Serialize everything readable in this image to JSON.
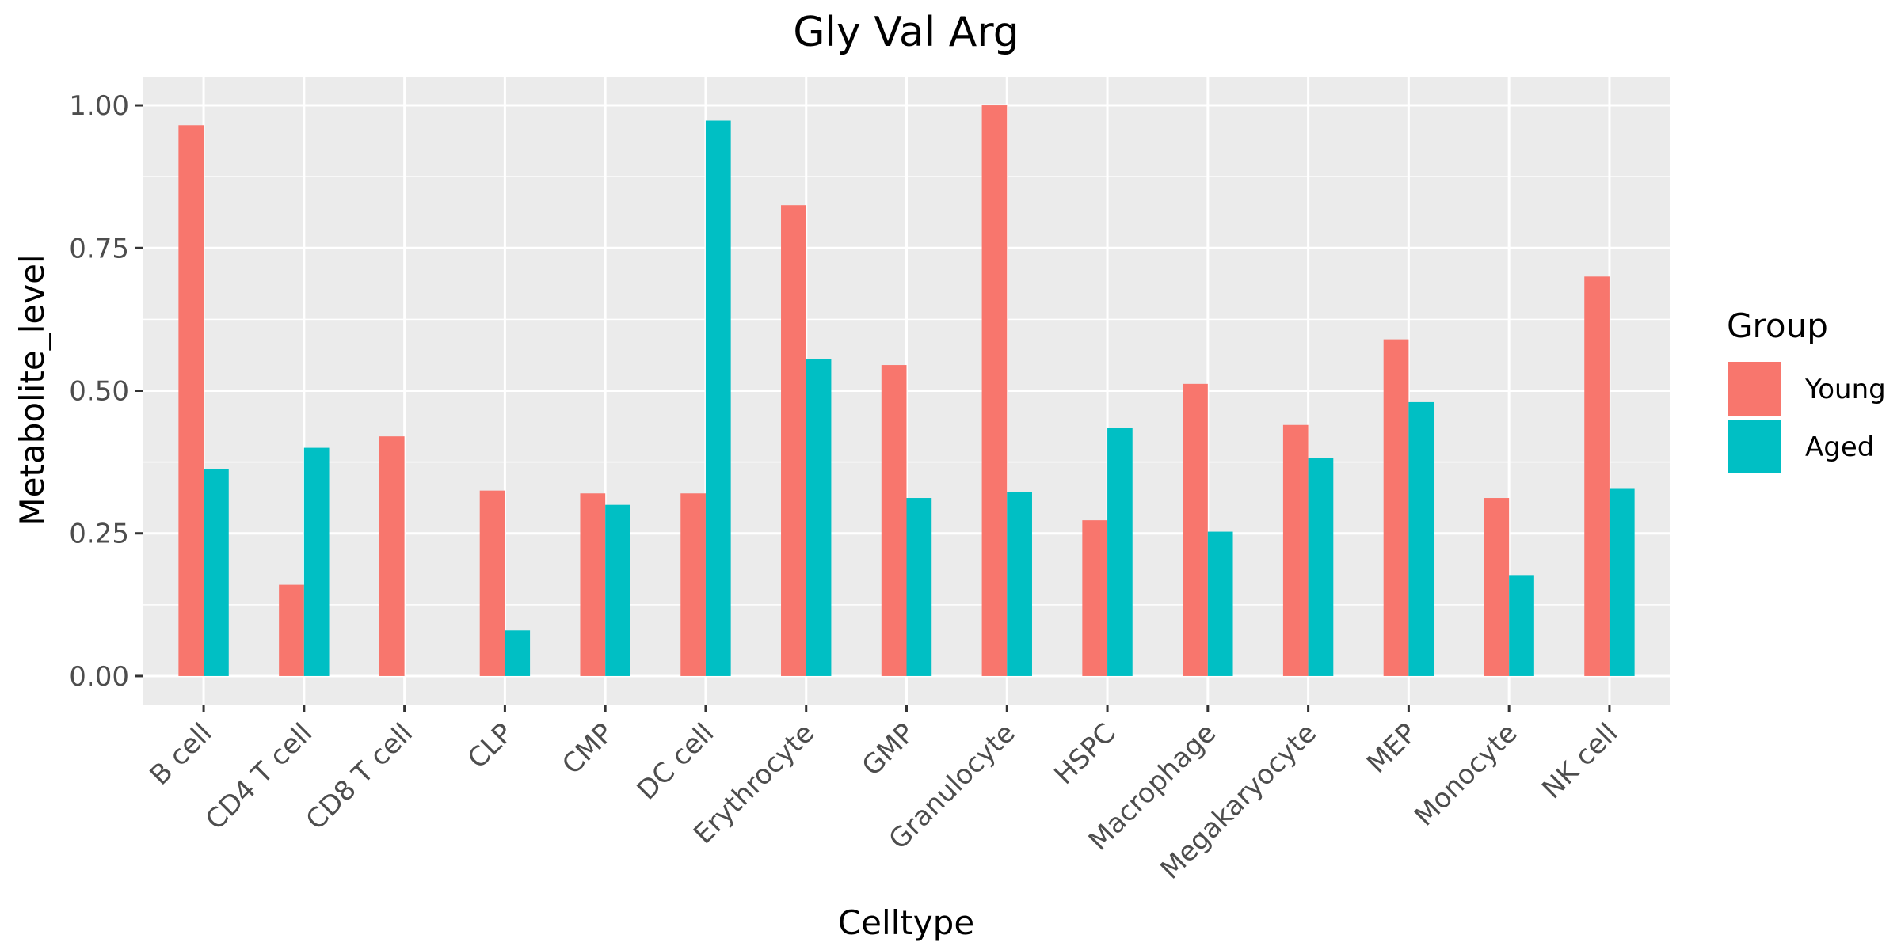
{
  "chart_data": {
    "type": "bar",
    "title": "Gly Val Arg",
    "xlabel": "Celltype",
    "ylabel": "Metabolite_level",
    "ylim": [
      -0.05,
      1.05
    ],
    "yticks": [
      0.0,
      0.25,
      0.5,
      0.75,
      1.0
    ],
    "ytick_labels": [
      "0.00",
      "0.25",
      "0.50",
      "0.75",
      "1.00"
    ],
    "grid": true,
    "legend": {
      "title": "Group",
      "position": "right"
    },
    "categories": [
      "B cell",
      "CD4 T cell",
      "CD8 T cell",
      "CLP",
      "CMP",
      "DC cell",
      "Erythrocyte",
      "GMP",
      "Granulocyte",
      "HSPC",
      "Macrophage",
      "Megakaryocyte",
      "MEP",
      "Monocyte",
      "NK cell"
    ],
    "series": [
      {
        "name": "Young",
        "color": "#F8766D",
        "values": [
          0.965,
          0.16,
          0.42,
          0.325,
          0.32,
          0.32,
          0.825,
          0.545,
          1.0,
          0.273,
          0.512,
          0.44,
          0.59,
          0.312,
          0.7
        ]
      },
      {
        "name": "Aged",
        "color": "#00BFC4",
        "values": [
          0.362,
          0.4,
          0.0,
          0.08,
          0.3,
          0.973,
          0.555,
          0.312,
          0.322,
          0.435,
          0.253,
          0.382,
          0.48,
          0.177,
          0.328
        ]
      }
    ]
  }
}
